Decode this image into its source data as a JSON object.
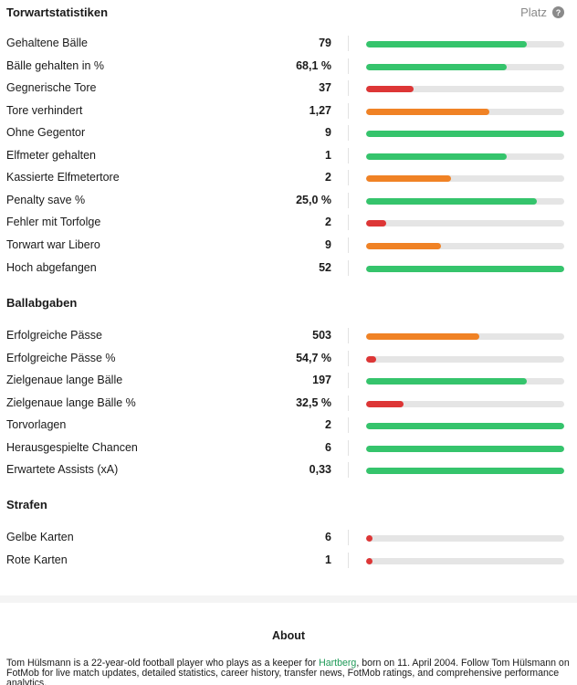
{
  "colors": {
    "green": "#35c46c",
    "orange": "#f08225",
    "red": "#dd3636",
    "track": "#e5e5e5"
  },
  "header": {
    "platz_label": "Platz",
    "help_icon": "question-circle-icon"
  },
  "sections": [
    {
      "title": "Torwartstatistiken",
      "rows": [
        {
          "label": "Gehaltene Bälle",
          "value": "79",
          "fill_pct": 81,
          "color": "green"
        },
        {
          "label": "Bälle gehalten in %",
          "value": "68,1 %",
          "fill_pct": 71,
          "color": "green"
        },
        {
          "label": "Gegnerische Tore",
          "value": "37",
          "fill_pct": 24,
          "color": "red"
        },
        {
          "label": "Tore verhindert",
          "value": "1,27",
          "fill_pct": 62,
          "color": "orange"
        },
        {
          "label": "Ohne Gegentor",
          "value": "9",
          "fill_pct": 100,
          "color": "green"
        },
        {
          "label": "Elfmeter gehalten",
          "value": "1",
          "fill_pct": 71,
          "color": "green"
        },
        {
          "label": "Kassierte Elfmetertore",
          "value": "2",
          "fill_pct": 43,
          "color": "orange"
        },
        {
          "label": "Penalty save %",
          "value": "25,0 %",
          "fill_pct": 86,
          "color": "green"
        },
        {
          "label": "Fehler mit Torfolge",
          "value": "2",
          "fill_pct": 10,
          "color": "red"
        },
        {
          "label": "Torwart war Libero",
          "value": "9",
          "fill_pct": 38,
          "color": "orange"
        },
        {
          "label": "Hoch abgefangen",
          "value": "52",
          "fill_pct": 100,
          "color": "green"
        }
      ]
    },
    {
      "title": "Ballabgaben",
      "rows": [
        {
          "label": "Erfolgreiche Pässe",
          "value": "503",
          "fill_pct": 57,
          "color": "orange"
        },
        {
          "label": "Erfolgreiche Pässe %",
          "value": "54,7 %",
          "fill_pct": 5,
          "color": "red"
        },
        {
          "label": "Zielgenaue lange Bälle",
          "value": "197",
          "fill_pct": 81,
          "color": "green"
        },
        {
          "label": "Zielgenaue lange Bälle %",
          "value": "32,5 %",
          "fill_pct": 19,
          "color": "red"
        },
        {
          "label": "Torvorlagen",
          "value": "2",
          "fill_pct": 100,
          "color": "green"
        },
        {
          "label": "Herausgespielte Chancen",
          "value": "6",
          "fill_pct": 100,
          "color": "green"
        },
        {
          "label": "Erwartete Assists (xA)",
          "value": "0,33",
          "fill_pct": 100,
          "color": "green"
        }
      ]
    },
    {
      "title": "Strafen",
      "rows": [
        {
          "label": "Gelbe Karten",
          "value": "6",
          "fill_pct": 3,
          "color": "red"
        },
        {
          "label": "Rote Karten",
          "value": "1",
          "fill_pct": 3,
          "color": "red"
        }
      ]
    }
  ],
  "about": {
    "title": "About",
    "text_before_link": "Tom Hülsmann is a 22-year-old football player who plays as a keeper for ",
    "link": "Hartberg",
    "text_after_link": ", born on 11. April 2004. Follow Tom Hülsmann on FotMob for live match updates, detailed statistics, career history, transfer news, FotMob ratings, and comprehensive performance analytics."
  }
}
